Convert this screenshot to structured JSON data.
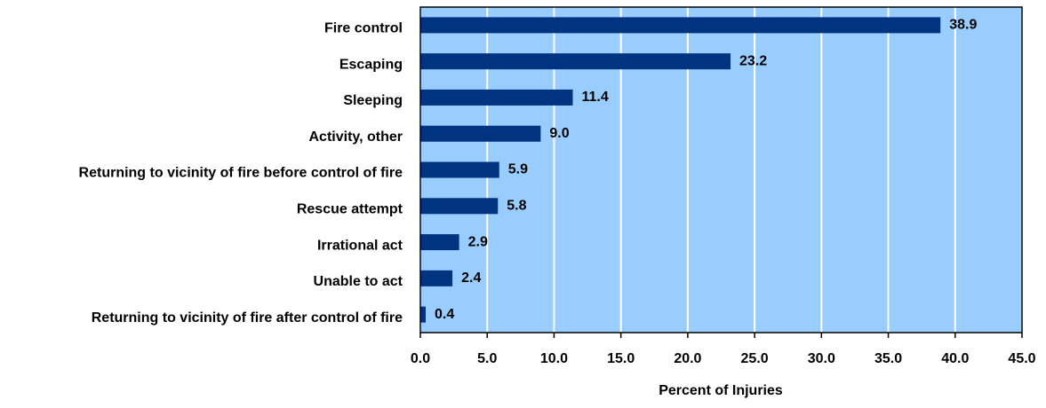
{
  "chart_data": {
    "type": "bar",
    "orientation": "horizontal",
    "x_label": "Percent of Injuries",
    "categories": [
      "Fire control",
      "Escaping",
      "Sleeping",
      "Activity, other",
      "Returning to vicinity of fire before control of fire",
      "Rescue attempt",
      "Irrational act",
      "Unable to act",
      "Returning to vicinity of fire after control of fire"
    ],
    "values": [
      38.9,
      23.2,
      11.4,
      9.0,
      5.9,
      5.8,
      2.9,
      2.4,
      0.4
    ],
    "value_labels": [
      "38.9",
      "23.2",
      "11.4",
      "9.0",
      "5.9",
      "5.8",
      "2.9",
      "2.4",
      "0.4"
    ],
    "color": "#003380",
    "background": "#99ccff",
    "grid": true,
    "xlim": [
      0,
      45
    ],
    "xticks": [
      {
        "value": 0,
        "label": "0.0"
      },
      {
        "value": 5,
        "label": "5.0"
      },
      {
        "value": 10,
        "label": "10.0"
      },
      {
        "value": 15,
        "label": "15.0"
      },
      {
        "value": 20,
        "label": "20.0"
      },
      {
        "value": 25,
        "label": "25.0"
      },
      {
        "value": 30,
        "label": "30.0"
      },
      {
        "value": 35,
        "label": "35.0"
      },
      {
        "value": 40,
        "label": "40.0"
      },
      {
        "value": 45,
        "label": "45.0"
      }
    ]
  }
}
